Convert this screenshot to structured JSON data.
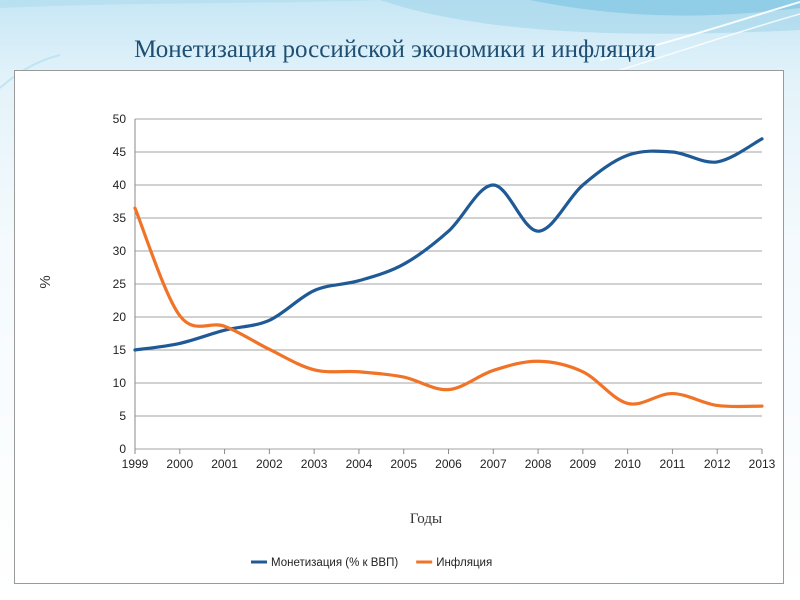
{
  "slide": {
    "title": "Монетизация российской экономики и инфляция",
    "accent_color": "#1f4f73",
    "background_color": "#d6eef8"
  },
  "chart_data": {
    "type": "line",
    "title": "",
    "xlabel": "Годы",
    "ylabel": "%",
    "x": [
      "1999",
      "2000",
      "2001",
      "2002",
      "2003",
      "2004",
      "2005",
      "2006",
      "2007",
      "2008",
      "2009",
      "2010",
      "2011",
      "2012",
      "2013"
    ],
    "ylim": [
      0,
      50
    ],
    "yticks": [
      0,
      5,
      10,
      15,
      20,
      25,
      30,
      35,
      40,
      45,
      50
    ],
    "grid": true,
    "legend": "bottom",
    "series": [
      {
        "name": "Монетизация (% к ВВП)",
        "color": "#1f5a96",
        "values": [
          15,
          16,
          18,
          19.5,
          24,
          25.5,
          28,
          33,
          40,
          33,
          40,
          44.5,
          45,
          43.5,
          47
        ]
      },
      {
        "name": "Инфляция",
        "color": "#f07328",
        "values": [
          36.5,
          20.2,
          18.6,
          15.1,
          12,
          11.7,
          10.9,
          9,
          11.9,
          13.3,
          11.7,
          6.9,
          8.4,
          6.6,
          6.5
        ]
      }
    ]
  }
}
